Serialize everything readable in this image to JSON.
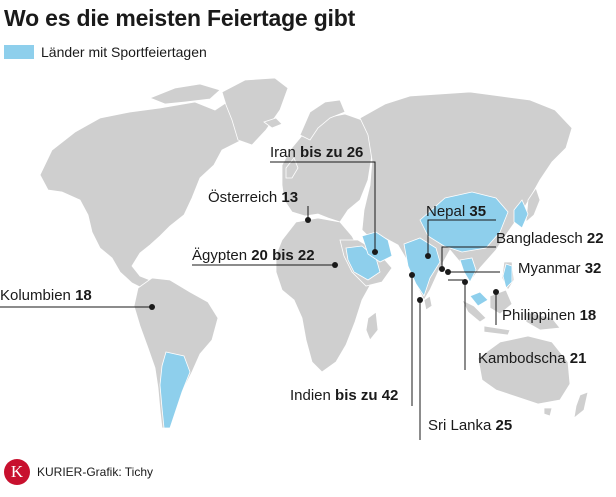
{
  "title": "Wo es die meisten Feiertage gibt",
  "legend": {
    "label": "Länder mit Sportfeiertagen",
    "color": "#8ecfec"
  },
  "colors": {
    "land": "#cfcfcf",
    "highlight": "#8ecfec",
    "border": "#ffffff",
    "leader": "#1a1a1a"
  },
  "labels": {
    "iran": {
      "name": "Iran",
      "value": "bis zu 26"
    },
    "oesterreich": {
      "name": "Österreich",
      "value": "13"
    },
    "aegypten": {
      "name": "Ägypten",
      "value": "20 bis 22"
    },
    "kolumbien": {
      "name": "Kolumbien",
      "value": "18"
    },
    "nepal": {
      "name": "Nepal",
      "value": "35"
    },
    "bangladesch": {
      "name": "Bangladesch",
      "value": "22"
    },
    "myanmar": {
      "name": "Myanmar",
      "value": "32"
    },
    "philippinen": {
      "name": "Philippinen",
      "value": "18"
    },
    "kambodscha": {
      "name": "Kambodscha",
      "value": "21"
    },
    "indien": {
      "name": "Indien",
      "value": "bis zu 42"
    },
    "srilanka": {
      "name": "Sri Lanka",
      "value": "25"
    }
  },
  "footer": {
    "logo_letter": "K",
    "credit": "KURIER-Grafik: Tichy"
  }
}
